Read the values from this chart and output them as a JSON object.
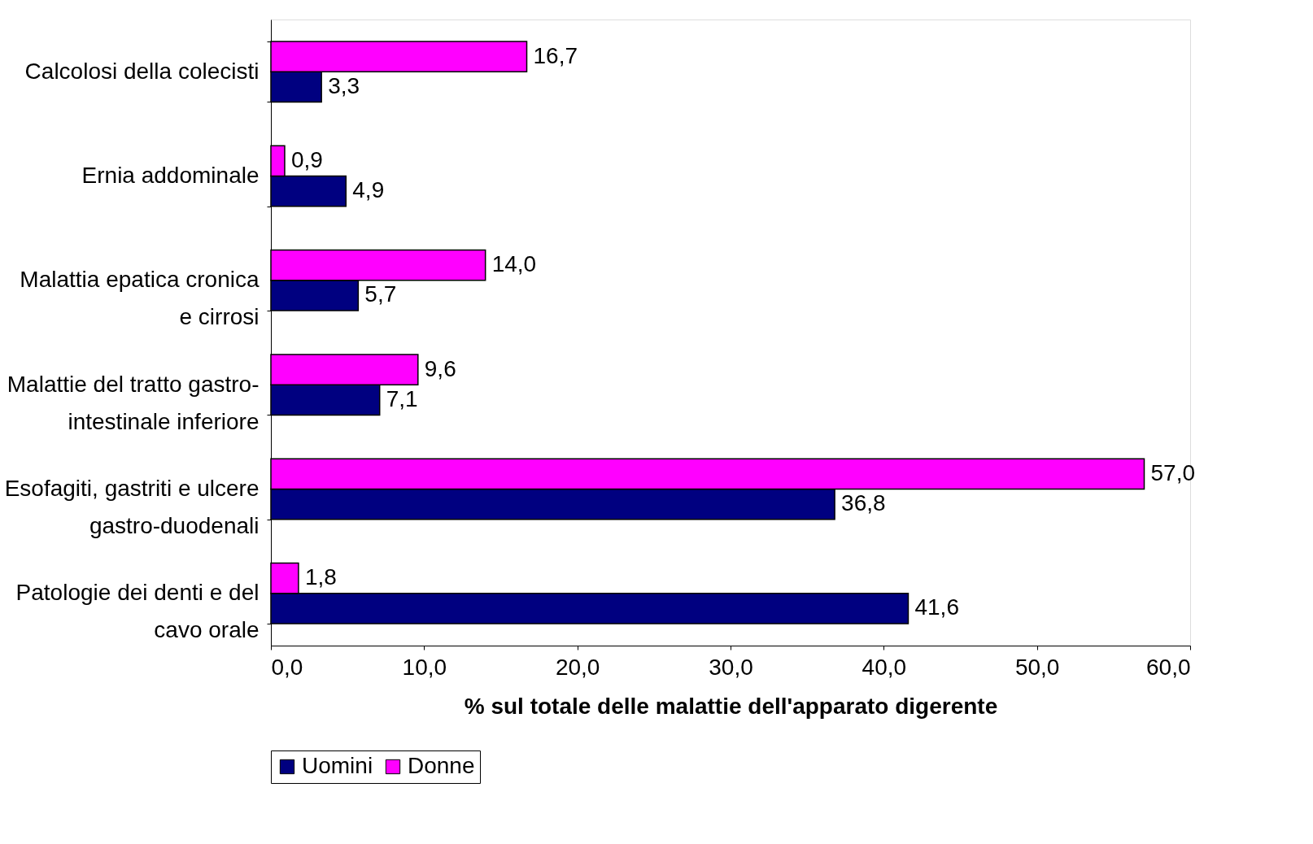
{
  "chart_data": {
    "type": "bar",
    "orientation": "horizontal",
    "xlabel": "% sul totale delle malattie dell'apparato digerente",
    "categories": [
      "Calcolosi della colecisti",
      "Ernia addominale",
      "Malattia epatica cronica\ne cirrosi",
      "Malattie del tratto gastro-\nintestinale inferiore",
      "Esofagiti, gastriti e ulcere\ngastro-duodenali",
      "Patologie dei denti e del\ncavo orale"
    ],
    "series": [
      {
        "name": "Uomini",
        "color": "#000080",
        "values": [
          3.3,
          4.9,
          5.7,
          7.1,
          36.8,
          41.6
        ],
        "value_labels": [
          "3,3",
          "4,9",
          "5,7",
          "7,1",
          "36,8",
          "41,6"
        ]
      },
      {
        "name": "Donne",
        "color": "#ff00ff",
        "values": [
          16.7,
          0.9,
          14.0,
          9.6,
          57.0,
          1.8
        ],
        "value_labels": [
          "16,7",
          "0,9",
          "14,0",
          "9,6",
          "57,0",
          "1,8"
        ]
      }
    ],
    "xlim": [
      0,
      60
    ],
    "xticks": [
      {
        "value": 0,
        "label": "0,0"
      },
      {
        "value": 10,
        "label": "10,0"
      },
      {
        "value": 20,
        "label": "20,0"
      },
      {
        "value": 30,
        "label": "30,0"
      },
      {
        "value": 40,
        "label": "40,0"
      },
      {
        "value": 50,
        "label": "50,0"
      },
      {
        "value": 60,
        "label": "60,0"
      }
    ],
    "grid": false,
    "legend": "bottom"
  }
}
